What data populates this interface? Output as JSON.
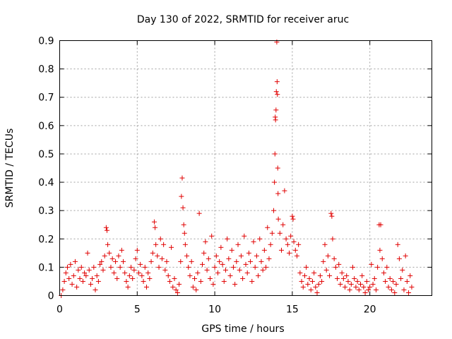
{
  "chart_data": {
    "type": "scatter",
    "title": "Day 130 of 2022, SRMTID for receiver aruc",
    "xlabel": "GPS time / hours",
    "ylabel": "SRMTID / TECUs",
    "xlim": [
      0,
      24
    ],
    "ylim": [
      0,
      0.9
    ],
    "xticks": [
      0,
      5,
      10,
      15,
      20
    ],
    "xtick_labels": [
      "0",
      "5",
      "10",
      "15",
      "20"
    ],
    "yticks": [
      0,
      0.1,
      0.2,
      0.3,
      0.4,
      0.5,
      0.6,
      0.7,
      0.8,
      0.9
    ],
    "ytick_labels": [
      "0",
      "0.1",
      "0.2",
      "0.3",
      "0.4",
      "0.5",
      "0.6",
      "0.7",
      "0.8",
      "0.9"
    ],
    "grid": true,
    "marker": "plus",
    "marker_color": "#e00000",
    "series": [
      {
        "name": "SRMTID",
        "points": [
          [
            0.1,
            0.0
          ],
          [
            0.2,
            0.02
          ],
          [
            0.3,
            0.05
          ],
          [
            0.4,
            0.08
          ],
          [
            0.5,
            0.1
          ],
          [
            0.6,
            0.06
          ],
          [
            0.7,
            0.11
          ],
          [
            0.8,
            0.04
          ],
          [
            0.9,
            0.07
          ],
          [
            1.0,
            0.12
          ],
          [
            1.1,
            0.03
          ],
          [
            1.2,
            0.09
          ],
          [
            1.3,
            0.06
          ],
          [
            1.4,
            0.1
          ],
          [
            1.5,
            0.05
          ],
          [
            1.6,
            0.08
          ],
          [
            1.7,
            0.07
          ],
          [
            1.8,
            0.15
          ],
          [
            1.9,
            0.09
          ],
          [
            2.0,
            0.04
          ],
          [
            2.1,
            0.06
          ],
          [
            2.2,
            0.1
          ],
          [
            2.3,
            0.02
          ],
          [
            2.4,
            0.07
          ],
          [
            2.5,
            0.05
          ],
          [
            2.6,
            0.11
          ],
          [
            2.7,
            0.12
          ],
          [
            2.8,
            0.09
          ],
          [
            2.9,
            0.14
          ],
          [
            3.0,
            0.24
          ],
          [
            3.05,
            0.23
          ],
          [
            3.1,
            0.18
          ],
          [
            3.2,
            0.15
          ],
          [
            3.3,
            0.1
          ],
          [
            3.4,
            0.13
          ],
          [
            3.5,
            0.08
          ],
          [
            3.6,
            0.12
          ],
          [
            3.7,
            0.06
          ],
          [
            3.8,
            0.14
          ],
          [
            3.9,
            0.1
          ],
          [
            4.0,
            0.16
          ],
          [
            4.1,
            0.12
          ],
          [
            4.2,
            0.08
          ],
          [
            4.3,
            0.05
          ],
          [
            4.4,
            0.03
          ],
          [
            4.5,
            0.07
          ],
          [
            4.6,
            0.1
          ],
          [
            4.7,
            0.06
          ],
          [
            4.8,
            0.09
          ],
          [
            4.9,
            0.13
          ],
          [
            5.0,
            0.16
          ],
          [
            5.1,
            0.08
          ],
          [
            5.2,
            0.11
          ],
          [
            5.3,
            0.07
          ],
          [
            5.4,
            0.05
          ],
          [
            5.5,
            0.1
          ],
          [
            5.6,
            0.03
          ],
          [
            5.7,
            0.08
          ],
          [
            5.8,
            0.06
          ],
          [
            5.9,
            0.12
          ],
          [
            6.0,
            0.15
          ],
          [
            6.1,
            0.26
          ],
          [
            6.15,
            0.24
          ],
          [
            6.2,
            0.18
          ],
          [
            6.3,
            0.14
          ],
          [
            6.4,
            0.1
          ],
          [
            6.5,
            0.2
          ],
          [
            6.6,
            0.13
          ],
          [
            6.7,
            0.18
          ],
          [
            6.8,
            0.09
          ],
          [
            6.9,
            0.12
          ],
          [
            7.0,
            0.07
          ],
          [
            7.1,
            0.05
          ],
          [
            7.2,
            0.17
          ],
          [
            7.3,
            0.03
          ],
          [
            7.4,
            0.06
          ],
          [
            7.5,
            0.02
          ],
          [
            7.6,
            0.01
          ],
          [
            7.7,
            0.04
          ],
          [
            7.8,
            0.12
          ],
          [
            7.85,
            0.35
          ],
          [
            7.9,
            0.415
          ],
          [
            7.95,
            0.31
          ],
          [
            8.0,
            0.25
          ],
          [
            8.05,
            0.22
          ],
          [
            8.1,
            0.18
          ],
          [
            8.2,
            0.14
          ],
          [
            8.3,
            0.1
          ],
          [
            8.4,
            0.07
          ],
          [
            8.5,
            0.12
          ],
          [
            8.6,
            0.03
          ],
          [
            8.7,
            0.06
          ],
          [
            8.8,
            0.02
          ],
          [
            8.9,
            0.08
          ],
          [
            9.0,
            0.29
          ],
          [
            9.1,
            0.05
          ],
          [
            9.2,
            0.11
          ],
          [
            9.3,
            0.15
          ],
          [
            9.4,
            0.19
          ],
          [
            9.5,
            0.09
          ],
          [
            9.6,
            0.13
          ],
          [
            9.7,
            0.06
          ],
          [
            9.8,
            0.21
          ],
          [
            9.9,
            0.04
          ],
          [
            10.0,
            0.1
          ],
          [
            10.1,
            0.14
          ],
          [
            10.2,
            0.08
          ],
          [
            10.3,
            0.12
          ],
          [
            10.4,
            0.17
          ],
          [
            10.5,
            0.11
          ],
          [
            10.6,
            0.05
          ],
          [
            10.7,
            0.09
          ],
          [
            10.8,
            0.2
          ],
          [
            10.9,
            0.13
          ],
          [
            11.0,
            0.07
          ],
          [
            11.1,
            0.16
          ],
          [
            11.2,
            0.1
          ],
          [
            11.3,
            0.04
          ],
          [
            11.4,
            0.12
          ],
          [
            11.5,
            0.18
          ],
          [
            11.6,
            0.09
          ],
          [
            11.7,
            0.14
          ],
          [
            11.8,
            0.06
          ],
          [
            11.9,
            0.21
          ],
          [
            12.0,
            0.11
          ],
          [
            12.1,
            0.08
          ],
          [
            12.2,
            0.15
          ],
          [
            12.3,
            0.12
          ],
          [
            12.4,
            0.05
          ],
          [
            12.5,
            0.19
          ],
          [
            12.6,
            0.1
          ],
          [
            12.7,
            0.14
          ],
          [
            12.8,
            0.07
          ],
          [
            12.9,
            0.2
          ],
          [
            13.0,
            0.12
          ],
          [
            13.1,
            0.09
          ],
          [
            13.2,
            0.16
          ],
          [
            13.3,
            0.1
          ],
          [
            13.4,
            0.24
          ],
          [
            13.5,
            0.13
          ],
          [
            13.6,
            0.18
          ],
          [
            13.7,
            0.22
          ],
          [
            13.8,
            0.3
          ],
          [
            13.85,
            0.4
          ],
          [
            13.88,
            0.5
          ],
          [
            13.9,
            0.63
          ],
          [
            13.92,
            0.62
          ],
          [
            13.95,
            0.655
          ],
          [
            13.97,
            0.72
          ],
          [
            14.0,
            0.895
          ],
          [
            14.02,
            0.755
          ],
          [
            14.04,
            0.71
          ],
          [
            14.06,
            0.45
          ],
          [
            14.08,
            0.36
          ],
          [
            14.1,
            0.27
          ],
          [
            14.2,
            0.22
          ],
          [
            14.3,
            0.16
          ],
          [
            14.4,
            0.25
          ],
          [
            14.5,
            0.37
          ],
          [
            14.6,
            0.2
          ],
          [
            14.7,
            0.18
          ],
          [
            14.8,
            0.15
          ],
          [
            14.9,
            0.21
          ],
          [
            15.0,
            0.28
          ],
          [
            15.05,
            0.27
          ],
          [
            15.1,
            0.19
          ],
          [
            15.2,
            0.16
          ],
          [
            15.3,
            0.14
          ],
          [
            15.4,
            0.18
          ],
          [
            15.5,
            0.08
          ],
          [
            15.6,
            0.05
          ],
          [
            15.7,
            0.03
          ],
          [
            15.8,
            0.07
          ],
          [
            15.9,
            0.1
          ],
          [
            16.0,
            0.04
          ],
          [
            16.1,
            0.06
          ],
          [
            16.2,
            0.02
          ],
          [
            16.3,
            0.05
          ],
          [
            16.4,
            0.08
          ],
          [
            16.5,
            0.03
          ],
          [
            16.6,
            0.01
          ],
          [
            16.7,
            0.04
          ],
          [
            16.8,
            0.07
          ],
          [
            16.9,
            0.05
          ],
          [
            17.0,
            0.12
          ],
          [
            17.1,
            0.18
          ],
          [
            17.2,
            0.09
          ],
          [
            17.3,
            0.14
          ],
          [
            17.4,
            0.07
          ],
          [
            17.5,
            0.29
          ],
          [
            17.55,
            0.28
          ],
          [
            17.6,
            0.2
          ],
          [
            17.7,
            0.13
          ],
          [
            17.8,
            0.1
          ],
          [
            17.9,
            0.06
          ],
          [
            18.0,
            0.11
          ],
          [
            18.1,
            0.04
          ],
          [
            18.2,
            0.08
          ],
          [
            18.3,
            0.06
          ],
          [
            18.4,
            0.03
          ],
          [
            18.5,
            0.07
          ],
          [
            18.6,
            0.05
          ],
          [
            18.7,
            0.02
          ],
          [
            18.8,
            0.04
          ],
          [
            18.9,
            0.1
          ],
          [
            19.0,
            0.06
          ],
          [
            19.1,
            0.03
          ],
          [
            19.2,
            0.05
          ],
          [
            19.3,
            0.02
          ],
          [
            19.4,
            0.04
          ],
          [
            19.5,
            0.07
          ],
          [
            19.6,
            0.03
          ],
          [
            19.7,
            0.01
          ],
          [
            19.8,
            0.05
          ],
          [
            19.9,
            0.02
          ],
          [
            20.0,
            0.03
          ],
          [
            20.1,
            0.11
          ],
          [
            20.2,
            0.04
          ],
          [
            20.3,
            0.06
          ],
          [
            20.4,
            0.02
          ],
          [
            20.5,
            0.1
          ],
          [
            20.6,
            0.25
          ],
          [
            20.65,
            0.16
          ],
          [
            20.7,
            0.25
          ],
          [
            20.8,
            0.13
          ],
          [
            20.9,
            0.08
          ],
          [
            21.0,
            0.05
          ],
          [
            21.1,
            0.1
          ],
          [
            21.2,
            0.03
          ],
          [
            21.3,
            0.06
          ],
          [
            21.4,
            0.02
          ],
          [
            21.5,
            0.05
          ],
          [
            21.6,
            0.01
          ],
          [
            21.7,
            0.04
          ],
          [
            21.8,
            0.18
          ],
          [
            21.9,
            0.13
          ],
          [
            22.0,
            0.06
          ],
          [
            22.1,
            0.09
          ],
          [
            22.2,
            0.02
          ],
          [
            22.3,
            0.14
          ],
          [
            22.4,
            0.05
          ],
          [
            22.5,
            0.01
          ],
          [
            22.6,
            0.07
          ],
          [
            22.7,
            0.03
          ]
        ]
      }
    ]
  }
}
